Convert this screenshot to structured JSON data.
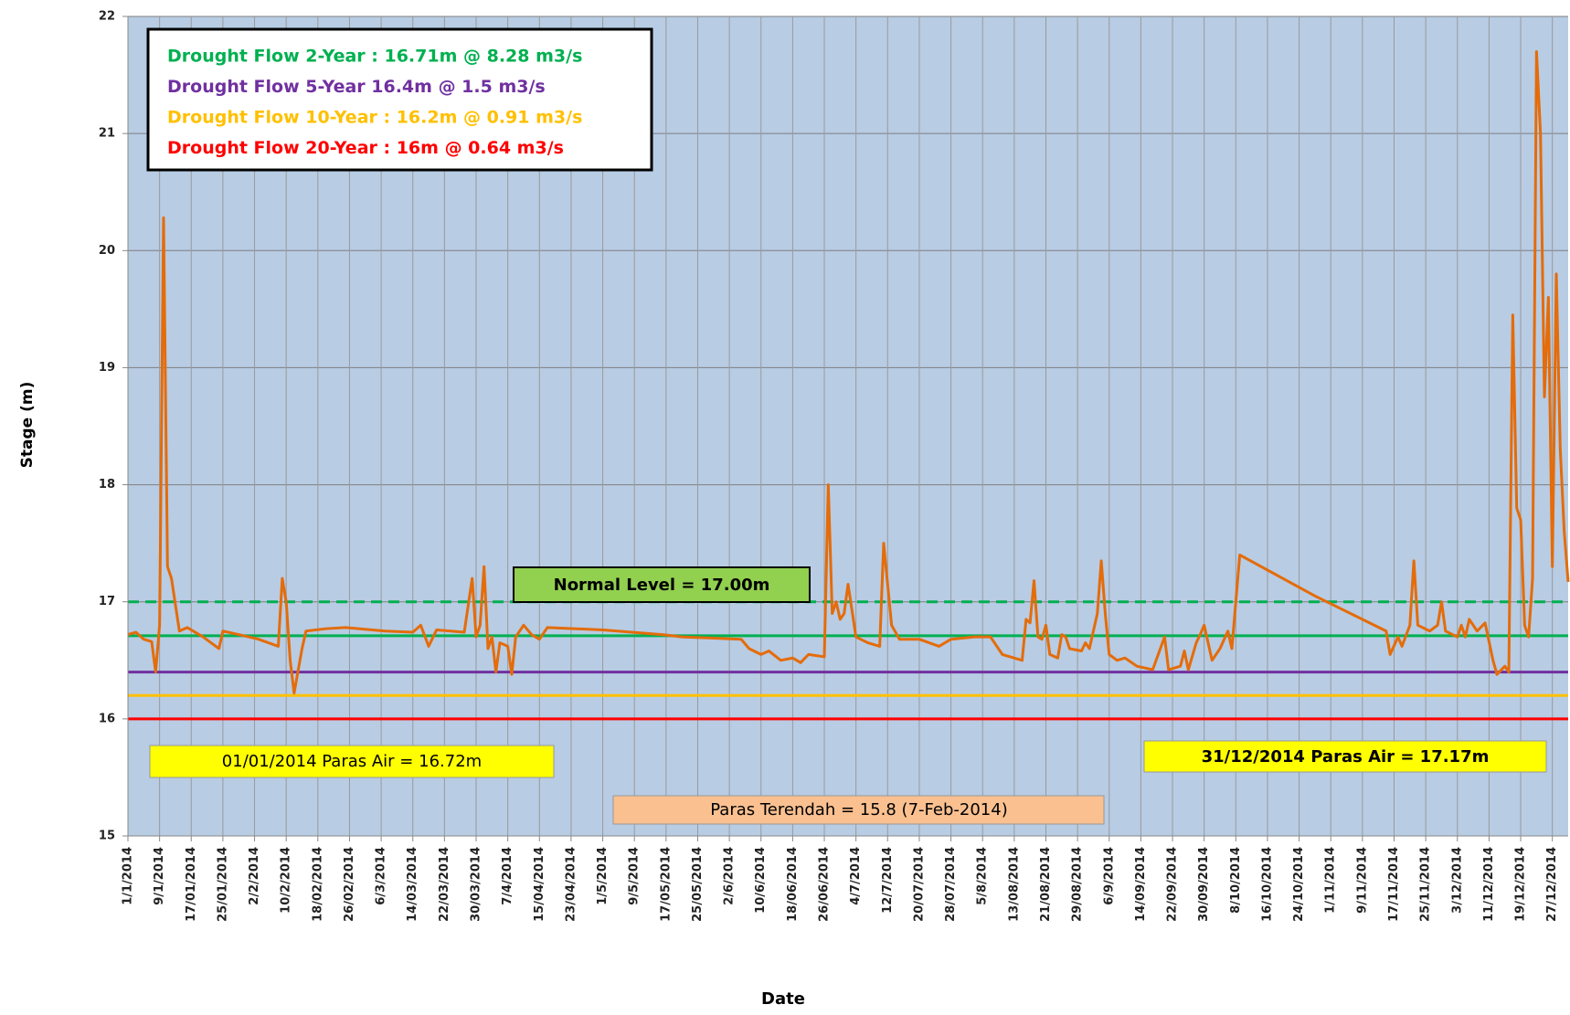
{
  "chart_data": {
    "type": "line",
    "x_label": "Date",
    "y_label": "Stage (m)",
    "ylim": [
      15,
      22
    ],
    "yticks": [
      15,
      16,
      17,
      18,
      19,
      20,
      21,
      22
    ],
    "xlim": [
      "2014-01-01",
      "2014-12-31"
    ],
    "xticks": [
      {
        "value": "2014-01-01",
        "label": "1/1/2014"
      },
      {
        "value": "2014-01-09",
        "label": "9/1/2014"
      },
      {
        "value": "2014-01-17",
        "label": "17/01/2014"
      },
      {
        "value": "2014-01-25",
        "label": "25/01/2014"
      },
      {
        "value": "2014-02-02",
        "label": "2/2/2014"
      },
      {
        "value": "2014-02-10",
        "label": "10/2/2014"
      },
      {
        "value": "2014-02-18",
        "label": "18/02/2014"
      },
      {
        "value": "2014-02-26",
        "label": "26/02/2014"
      },
      {
        "value": "2014-03-06",
        "label": "6/3/2014"
      },
      {
        "value": "2014-03-14",
        "label": "14/03/2014"
      },
      {
        "value": "2014-03-22",
        "label": "22/03/2014"
      },
      {
        "value": "2014-03-30",
        "label": "30/03/2014"
      },
      {
        "value": "2014-04-07",
        "label": "7/4/2014"
      },
      {
        "value": "2014-04-15",
        "label": "15/04/2014"
      },
      {
        "value": "2014-04-23",
        "label": "23/04/2014"
      },
      {
        "value": "2014-05-01",
        "label": "1/5/2014"
      },
      {
        "value": "2014-05-09",
        "label": "9/5/2014"
      },
      {
        "value": "2014-05-17",
        "label": "17/05/2014"
      },
      {
        "value": "2014-05-25",
        "label": "25/05/2014"
      },
      {
        "value": "2014-06-02",
        "label": "2/6/2014"
      },
      {
        "value": "2014-06-10",
        "label": "10/6/2014"
      },
      {
        "value": "2014-06-18",
        "label": "18/06/2014"
      },
      {
        "value": "2014-06-26",
        "label": "26/06/2014"
      },
      {
        "value": "2014-07-04",
        "label": "4/7/2014"
      },
      {
        "value": "2014-07-12",
        "label": "12/7/2014"
      },
      {
        "value": "2014-07-20",
        "label": "20/07/2014"
      },
      {
        "value": "2014-07-28",
        "label": "28/07/2014"
      },
      {
        "value": "2014-08-05",
        "label": "5/8/2014"
      },
      {
        "value": "2014-08-13",
        "label": "13/08/2014"
      },
      {
        "value": "2014-08-21",
        "label": "21/08/2014"
      },
      {
        "value": "2014-08-29",
        "label": "29/08/2014"
      },
      {
        "value": "2014-09-06",
        "label": "6/9/2014"
      },
      {
        "value": "2014-09-14",
        "label": "14/09/2014"
      },
      {
        "value": "2014-09-22",
        "label": "22/09/2014"
      },
      {
        "value": "2014-09-30",
        "label": "30/09/2014"
      },
      {
        "value": "2014-10-08",
        "label": "8/10/2014"
      },
      {
        "value": "2014-10-16",
        "label": "16/10/2014"
      },
      {
        "value": "2014-10-24",
        "label": "24/10/2014"
      },
      {
        "value": "2014-11-01",
        "label": "1/11/2014"
      },
      {
        "value": "2014-11-09",
        "label": "9/11/2014"
      },
      {
        "value": "2014-11-17",
        "label": "17/11/2014"
      },
      {
        "value": "2014-11-25",
        "label": "25/11/2014"
      },
      {
        "value": "2014-12-03",
        "label": "3/12/2014"
      },
      {
        "value": "2014-12-11",
        "label": "11/12/2014"
      },
      {
        "value": "2014-12-19",
        "label": "19/12/2014"
      },
      {
        "value": "2014-12-27",
        "label": "27/12/2014"
      }
    ],
    "grid": true,
    "x": [
      "2014-01-01",
      "2014-01-03",
      "2014-01-05",
      "2014-01-07",
      "2014-01-08",
      "2014-01-09",
      "2014-01-10",
      "2014-01-11",
      "2014-01-12",
      "2014-01-14",
      "2014-01-16",
      "2014-01-20",
      "2014-01-24",
      "2014-01-25",
      "2014-01-29",
      "2014-02-03",
      "2014-02-08",
      "2014-02-09",
      "2014-02-10",
      "2014-02-11",
      "2014-02-12",
      "2014-02-14",
      "2014-02-15",
      "2014-02-20",
      "2014-02-25",
      "2014-03-07",
      "2014-03-14",
      "2014-03-16",
      "2014-03-18",
      "2014-03-20",
      "2014-03-27",
      "2014-03-29",
      "2014-03-30",
      "2014-03-31",
      "2014-04-01",
      "2014-04-02",
      "2014-04-03",
      "2014-04-04",
      "2014-04-05",
      "2014-04-07",
      "2014-04-08",
      "2014-04-09",
      "2014-04-11",
      "2014-04-13",
      "2014-04-15",
      "2014-04-17",
      "2014-05-01",
      "2014-05-16",
      "2014-05-21",
      "2014-06-05",
      "2014-06-07",
      "2014-06-10",
      "2014-06-12",
      "2014-06-15",
      "2014-06-18",
      "2014-06-20",
      "2014-06-22",
      "2014-06-26",
      "2014-06-27",
      "2014-06-28",
      "2014-06-29",
      "2014-06-30",
      "2014-07-01",
      "2014-07-02",
      "2014-07-04",
      "2014-07-07",
      "2014-07-10",
      "2014-07-11",
      "2014-07-13",
      "2014-07-15",
      "2014-07-20",
      "2014-07-25",
      "2014-07-28",
      "2014-08-03",
      "2014-08-07",
      "2014-08-10",
      "2014-08-15",
      "2014-08-16",
      "2014-08-17",
      "2014-08-18",
      "2014-08-19",
      "2014-08-20",
      "2014-08-21",
      "2014-08-22",
      "2014-08-24",
      "2014-08-25",
      "2014-08-26",
      "2014-08-27",
      "2014-08-30",
      "2014-08-31",
      "2014-09-01",
      "2014-09-03",
      "2014-09-04",
      "2014-09-05",
      "2014-09-06",
      "2014-09-08",
      "2014-09-10",
      "2014-09-13",
      "2014-09-17",
      "2014-09-20",
      "2014-09-21",
      "2014-09-24",
      "2014-09-25",
      "2014-09-26",
      "2014-09-28",
      "2014-09-29",
      "2014-09-30",
      "2014-10-02",
      "2014-10-04",
      "2014-10-06",
      "2014-10-07",
      "2014-10-09",
      "2014-10-28",
      "2014-11-15",
      "2014-11-16",
      "2014-11-18",
      "2014-11-19",
      "2014-11-21",
      "2014-11-22",
      "2014-11-23",
      "2014-11-26",
      "2014-11-28",
      "2014-11-29",
      "2014-11-30",
      "2014-12-03",
      "2014-12-04",
      "2014-12-05",
      "2014-12-06",
      "2014-12-08",
      "2014-12-10",
      "2014-12-12",
      "2014-12-13",
      "2014-12-15",
      "2014-12-16",
      "2014-12-17",
      "2014-12-18",
      "2014-12-19",
      "2014-12-20",
      "2014-12-21",
      "2014-12-22",
      "2014-12-23",
      "2014-12-24",
      "2014-12-25",
      "2014-12-26",
      "2014-12-27",
      "2014-12-28",
      "2014-12-29",
      "2014-12-30",
      "2014-12-31"
    ],
    "series": [
      {
        "color": "#e46c0a",
        "values": [
          16.72,
          16.74,
          16.68,
          16.66,
          16.4,
          16.8,
          20.28,
          17.3,
          17.2,
          16.75,
          16.78,
          16.7,
          16.6,
          16.75,
          16.72,
          16.68,
          16.62,
          17.2,
          17.0,
          16.5,
          16.22,
          16.6,
          16.75,
          16.77,
          16.78,
          16.75,
          16.74,
          16.8,
          16.62,
          16.76,
          16.74,
          17.2,
          16.7,
          16.8,
          17.3,
          16.6,
          16.7,
          16.4,
          16.65,
          16.62,
          16.38,
          16.7,
          16.8,
          16.72,
          16.68,
          16.78,
          16.76,
          16.72,
          16.7,
          16.68,
          16.6,
          16.55,
          16.58,
          16.5,
          16.52,
          16.48,
          16.55,
          16.53,
          18.0,
          16.9,
          17.0,
          16.85,
          16.9,
          17.15,
          16.7,
          16.65,
          16.62,
          17.5,
          16.8,
          16.68,
          16.68,
          16.62,
          16.68,
          16.7,
          16.7,
          16.55,
          16.5,
          16.85,
          16.82,
          17.18,
          16.7,
          16.68,
          16.8,
          16.55,
          16.52,
          16.72,
          16.7,
          16.6,
          16.58,
          16.65,
          16.6,
          16.9,
          17.35,
          16.9,
          16.55,
          16.5,
          16.52,
          16.45,
          16.42,
          16.7,
          16.42,
          16.45,
          16.58,
          16.42,
          16.65,
          16.72,
          16.8,
          16.5,
          16.6,
          16.75,
          16.6,
          17.4,
          17.05,
          16.75,
          16.55,
          16.7,
          16.62,
          16.8,
          17.35,
          16.8,
          16.75,
          16.8,
          17.0,
          16.75,
          16.7,
          16.8,
          16.7,
          16.85,
          16.75,
          16.82,
          16.5,
          16.38,
          16.45,
          16.4,
          19.45,
          17.8,
          17.7,
          16.8,
          16.7,
          17.2,
          21.7,
          21.0,
          18.75,
          19.6,
          17.3,
          19.8,
          18.3,
          17.6,
          17.17
        ]
      }
    ],
    "reference_lines": [
      {
        "label": "Drought Flow 2-Year : 16.71m @ 8.28 m3/s",
        "value": 16.71,
        "color": "#00b050"
      },
      {
        "label": "Drought Flow 5-Year 16.4m @ 1.5 m3/s",
        "value": 16.4,
        "color": "#7030a0"
      },
      {
        "label": "Drought Flow 10-Year : 16.2m @ 0.91 m3/s",
        "value": 16.2,
        "color": "#ffc000"
      },
      {
        "label": "Drought Flow 20-Year : 16m @ 0.64 m3/s",
        "value": 16,
        "color": "#ff0000"
      }
    ],
    "normal_level": {
      "label": "Normal Level = 17.00m",
      "value": 17,
      "color": "#00b050",
      "dashed": true
    },
    "annotations": [
      "01/01/2014  Paras Air =  16.72m",
      "31/12/2014  Paras Air = 17.17m",
      "Paras Terendah = 15.8  (7-Feb-2014)"
    ]
  }
}
